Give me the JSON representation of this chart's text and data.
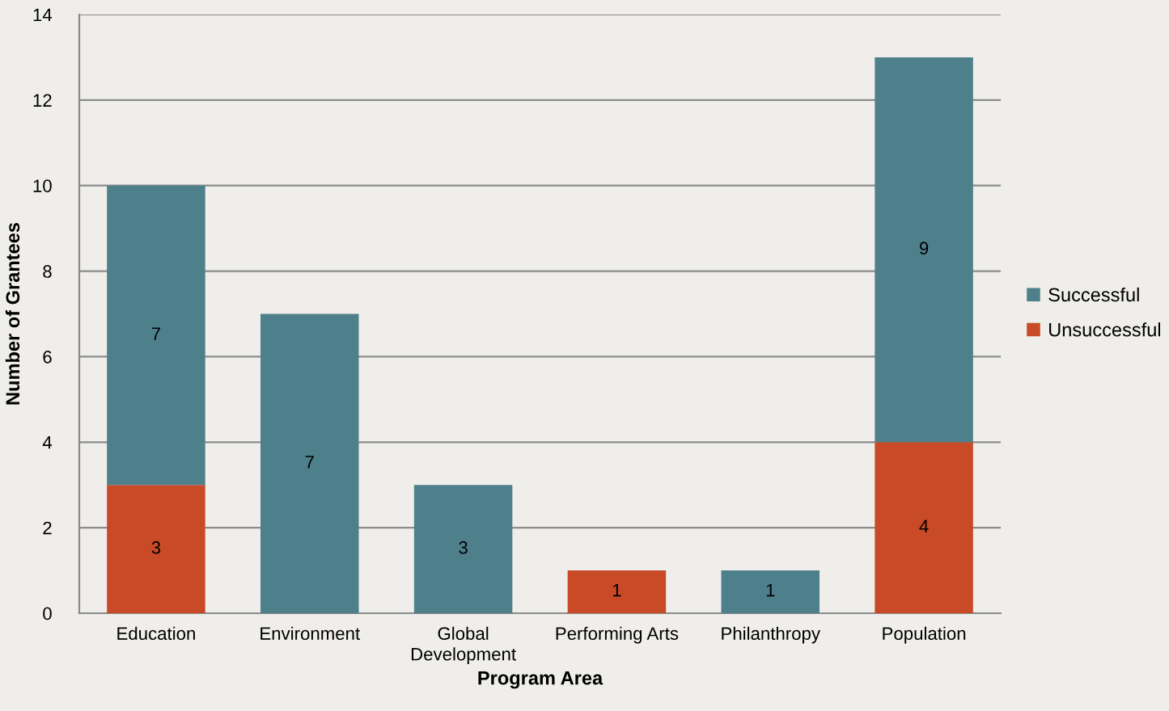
{
  "chart_data": {
    "type": "bar",
    "stacked": true,
    "xlabel": "Program Area",
    "ylabel": "Number of Grantees",
    "categories": [
      "Education",
      "Environment",
      "Global\nDevelopment",
      "Performing Arts",
      "Philanthropy",
      "Population"
    ],
    "series": [
      {
        "name": "Unsuccessful",
        "color": "#c94a27",
        "values": [
          3,
          null,
          null,
          1,
          null,
          4
        ]
      },
      {
        "name": "Successful",
        "color": "#4e808b",
        "values": [
          7,
          7,
          3,
          null,
          1,
          9
        ]
      }
    ],
    "ylim": [
      0,
      14
    ],
    "yticks": [
      0,
      2,
      4,
      6,
      8,
      10,
      12,
      14
    ],
    "grid": "y",
    "legend": "right",
    "data_labels": true
  }
}
